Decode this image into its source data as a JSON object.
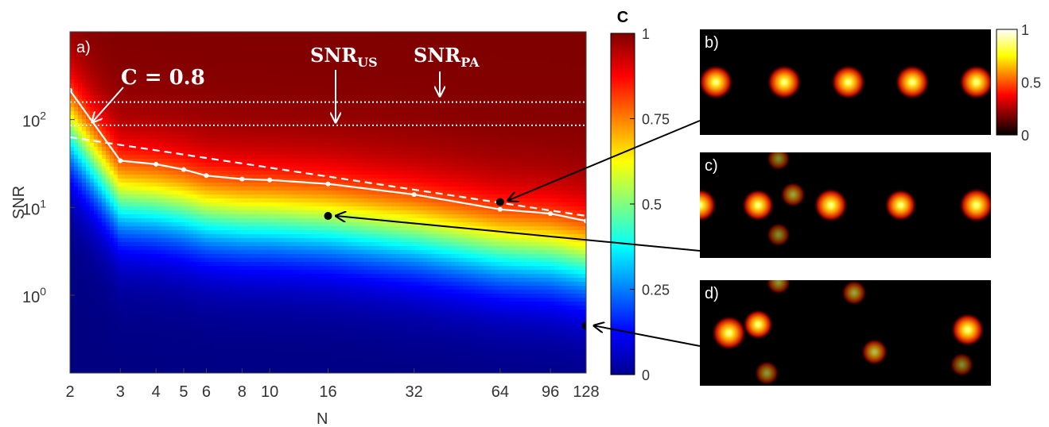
{
  "chart_data": [
    {
      "panel": "a)",
      "type": "heatmap",
      "xlabel": "N",
      "ylabel": "SNR",
      "xscale": "log2",
      "yscale": "log10",
      "xlim": [
        2,
        128
      ],
      "ylim": [
        0.13,
        1000
      ],
      "x_ticks": [
        "2",
        "3",
        "4",
        "5",
        "6",
        "8",
        "10",
        "16",
        "32",
        "64",
        "96",
        "128"
      ],
      "x_tick_values": [
        2,
        3,
        4,
        5,
        6,
        8,
        10,
        16,
        32,
        64,
        96,
        128
      ],
      "y_ticks": [
        {
          "value": 100,
          "base": "10",
          "exp": "2"
        },
        {
          "value": 10,
          "base": "10",
          "exp": "1"
        },
        {
          "value": 1,
          "base": "10",
          "exp": "0"
        }
      ],
      "colormap": "jet",
      "colorbar": {
        "title": "C",
        "min": 0,
        "max": 1,
        "tick_labels": [
          "1",
          "0.75",
          "0.5",
          "0.25",
          "0"
        ],
        "tick_values": [
          1,
          0.75,
          0.5,
          0.25,
          0
        ]
      },
      "contour_C08": {
        "label": "C = 0.8",
        "x": [
          2,
          3,
          4,
          5,
          6,
          8,
          10,
          16,
          32,
          64,
          96,
          128
        ],
        "y": [
          215,
          34,
          31,
          27,
          23,
          21,
          20.5,
          18.5,
          14,
          9.5,
          8.5,
          7
        ]
      },
      "dashed_fit": {
        "x": [
          2,
          128
        ],
        "y": [
          63,
          8
        ]
      },
      "thresholds": [
        {
          "name_main": "SNR",
          "name_sub": "US",
          "value": 86
        },
        {
          "name_main": "SNR",
          "name_sub": "PA",
          "value": 158
        }
      ],
      "markers": [
        {
          "x": 64,
          "y": 11.5,
          "to_panel": "b)"
        },
        {
          "x": 16,
          "y": 8,
          "to_panel": "c)"
        },
        {
          "x": 128,
          "y": 0.45,
          "to_panel": "d)"
        }
      ]
    },
    {
      "panel": "b)",
      "type": "heatmap",
      "colormap": "hot",
      "colorbar": {
        "tick_labels": [
          "1",
          "0.5",
          "0"
        ],
        "tick_values": [
          1,
          0.5,
          0
        ]
      },
      "spots": [
        [
          0.055,
          0.5,
          1
        ],
        [
          0.29,
          0.5,
          1
        ],
        [
          0.51,
          0.5,
          1
        ],
        [
          0.73,
          0.5,
          1
        ],
        [
          0.95,
          0.5,
          1
        ]
      ]
    },
    {
      "panel": "c)",
      "type": "heatmap",
      "colormap": "hot",
      "spots": [
        [
          0.0,
          0.5,
          0.9
        ],
        [
          0.2,
          0.5,
          0.8
        ],
        [
          0.45,
          0.5,
          0.95
        ],
        [
          0.69,
          0.5,
          0.8
        ],
        [
          0.95,
          0.5,
          1
        ],
        [
          0.32,
          0.4,
          0.25
        ],
        [
          0.27,
          0.06,
          0.15
        ],
        [
          0.27,
          0.78,
          0.15
        ]
      ]
    },
    {
      "panel": "d)",
      "type": "heatmap",
      "colormap": "hot",
      "spots": [
        [
          0.1,
          0.5,
          1
        ],
        [
          0.2,
          0.42,
          0.65
        ],
        [
          0.92,
          0.47,
          0.9
        ],
        [
          0.6,
          0.68,
          0.35
        ],
        [
          0.53,
          0.12,
          0.25
        ],
        [
          0.27,
          0.02,
          0.2
        ],
        [
          0.23,
          0.88,
          0.2
        ],
        [
          0.9,
          0.8,
          0.15
        ]
      ]
    }
  ]
}
